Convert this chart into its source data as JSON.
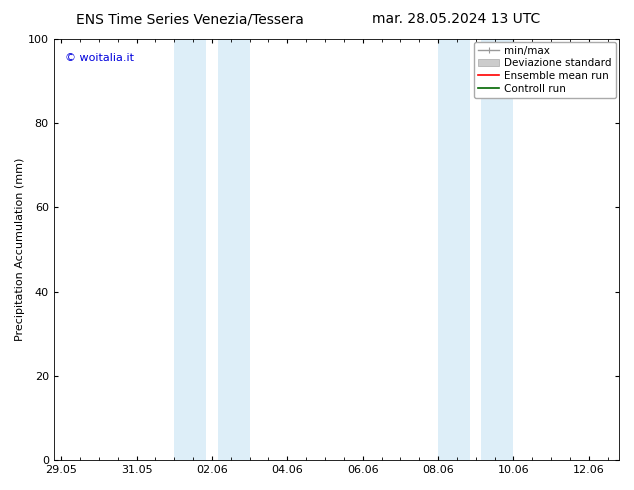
{
  "title_left": "ENS Time Series Venezia/Tessera",
  "title_right": "mar. 28.05.2024 13 UTC",
  "ylabel": "Precipitation Accumulation (mm)",
  "ylim": [
    0,
    100
  ],
  "yticks": [
    0,
    20,
    40,
    60,
    80,
    100
  ],
  "watermark": "© woitalia.it",
  "watermark_color": "#0000dd",
  "background_color": "#ffffff",
  "plot_bg_color": "#ffffff",
  "shaded_color": "#ddeef8",
  "x_tick_labels": [
    "29.05",
    "31.05",
    "02.06",
    "04.06",
    "06.06",
    "08.06",
    "10.06",
    "12.06"
  ],
  "x_tick_positions": [
    0,
    2,
    4,
    6,
    8,
    10,
    12,
    14
  ],
  "xlim_days": [
    -0.2,
    14.8
  ],
  "shaded_x_coords": [
    {
      "start": 3.0,
      "end": 3.85
    },
    {
      "start": 4.15,
      "end": 5.0
    },
    {
      "start": 10.0,
      "end": 10.85
    },
    {
      "start": 11.15,
      "end": 12.0
    }
  ],
  "legend_items": [
    {
      "label": "min/max",
      "color": "#aaaaaa",
      "type": "line_with_caps"
    },
    {
      "label": "Deviazione standard",
      "color": "#ccddee",
      "type": "rect"
    },
    {
      "label": "Ensemble mean run",
      "color": "#ff0000",
      "type": "line"
    },
    {
      "label": "Controll run",
      "color": "#006600",
      "type": "line"
    }
  ],
  "title_fontsize": 10,
  "tick_fontsize": 8,
  "ylabel_fontsize": 8,
  "legend_fontsize": 7.5,
  "watermark_fontsize": 8
}
